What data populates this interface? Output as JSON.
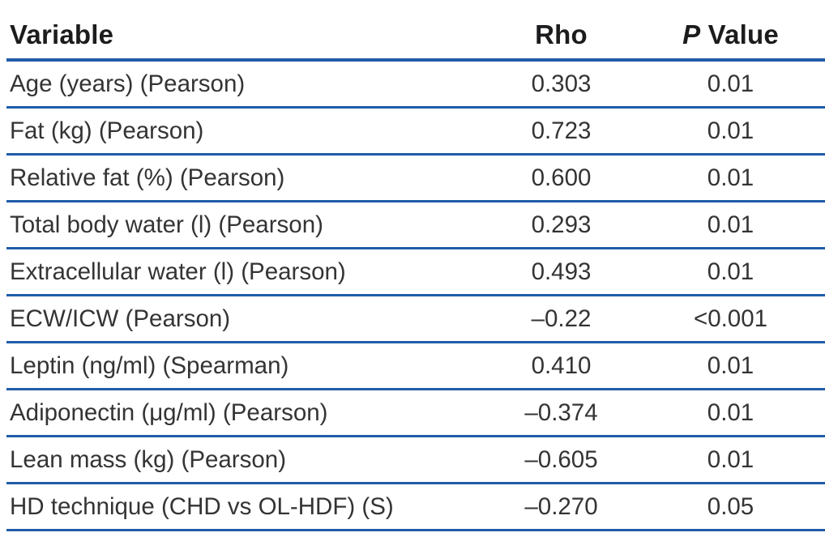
{
  "chart_data": {
    "type": "table",
    "title": "",
    "columns": [
      {
        "id": "variable",
        "label": "Variable"
      },
      {
        "id": "rho",
        "label": "Rho"
      },
      {
        "id": "p_value",
        "label_italic": "P",
        "label_rest": " Value"
      }
    ],
    "rows": [
      {
        "variable": "Age (years) (Pearson)",
        "rho": "0.303",
        "p_value": "0.01"
      },
      {
        "variable": "Fat (kg) (Pearson)",
        "rho": "0.723",
        "p_value": "0.01"
      },
      {
        "variable": "Relative fat (%) (Pearson)",
        "rho": "0.600",
        "p_value": "0.01"
      },
      {
        "variable": "Total body water (l) (Pearson)",
        "rho": "0.293",
        "p_value": "0.01"
      },
      {
        "variable": "Extracellular water (l) (Pearson)",
        "rho": "0.493",
        "p_value": "0.01"
      },
      {
        "variable": "ECW/ICW (Pearson)",
        "rho": "–0.22",
        "p_value": "<0.001"
      },
      {
        "variable": "Leptin (ng/ml) (Spearman)",
        "rho": "0.410",
        "p_value": "0.01"
      },
      {
        "variable": "Adiponectin (μg/ml) (Pearson)",
        "rho": "–0.374",
        "p_value": "0.01"
      },
      {
        "variable": "Lean mass (kg) (Pearson)",
        "rho": "–0.605",
        "p_value": "0.01"
      },
      {
        "variable": "HD technique (CHD vs OL-HDF) (S)",
        "rho": "–0.270",
        "p_value": "0.05"
      }
    ],
    "layout": {
      "rule_color": "#1f5ca9",
      "text_color": "#343436",
      "header_text_color": "#1c1c1e",
      "grid": "horizontal-rules-only"
    }
  }
}
